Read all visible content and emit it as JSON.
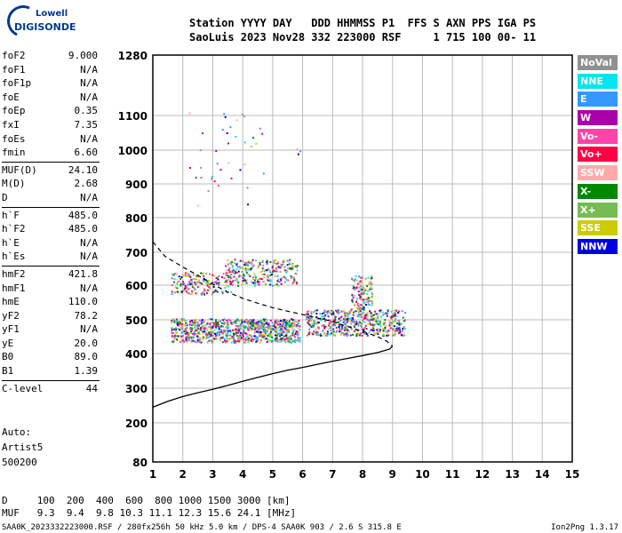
{
  "logo": {
    "line1": "Lowell",
    "line2": "DIGISONDE"
  },
  "header": {
    "labels": "Station YYYY DAY   DDD HHMMSS P1  FFS S AXN PPS IGA PS",
    "values": "SaoLuis 2023 Nov28 332 223000 RSF     1 715 100 00- 11"
  },
  "params": [
    {
      "k": "foF2",
      "v": "9.000"
    },
    {
      "k": "foF1",
      "v": "N/A"
    },
    {
      "k": "foF1p",
      "v": "N/A"
    },
    {
      "k": "foE",
      "v": "N/A"
    },
    {
      "k": "foEp",
      "v": "0.35"
    },
    {
      "k": "fxI",
      "v": "7.35"
    },
    {
      "k": "foEs",
      "v": "N/A"
    },
    {
      "k": "fmin",
      "v": "6.60"
    },
    {
      "k": "MUF(D)",
      "v": "24.10"
    },
    {
      "k": "M(D)",
      "v": "2.68"
    },
    {
      "k": "D",
      "v": "N/A"
    },
    {
      "k": "h`F",
      "v": "485.0"
    },
    {
      "k": "h`F2",
      "v": "485.0"
    },
    {
      "k": "h`E",
      "v": "N/A"
    },
    {
      "k": "h`Es",
      "v": "N/A"
    },
    {
      "k": "hmF2",
      "v": "421.8"
    },
    {
      "k": "hmF1",
      "v": "N/A"
    },
    {
      "k": "hmE",
      "v": "110.0"
    },
    {
      "k": "yF2",
      "v": "78.2"
    },
    {
      "k": "yF1",
      "v": "N/A"
    },
    {
      "k": "yE",
      "v": "20.0"
    },
    {
      "k": "B0",
      "v": "89.0"
    },
    {
      "k": "B1",
      "v": "1.39"
    },
    {
      "k": "C-level",
      "v": "44"
    }
  ],
  "auto": {
    "line1": "Auto:",
    "line2": "Artist5",
    "line3": "500200"
  },
  "legend": [
    {
      "label": "NoVal",
      "color": "#909090"
    },
    {
      "label": "NNE",
      "color": "#00e5ee"
    },
    {
      "label": "E",
      "color": "#3399ff"
    },
    {
      "label": "W",
      "color": "#aa00aa"
    },
    {
      "label": "Vo-",
      "color": "#ff44aa"
    },
    {
      "label": "Vo+",
      "color": "#ff0044"
    },
    {
      "label": "SSW",
      "color": "#ffaaaa"
    },
    {
      "label": "X-",
      "color": "#008800"
    },
    {
      "label": "X+",
      "color": "#77bb55"
    },
    {
      "label": "SSE",
      "color": "#cccc00"
    },
    {
      "label": "NNW",
      "color": "#0000dd"
    }
  ],
  "chart_data": {
    "type": "scatter",
    "xlim": [
      1,
      15
    ],
    "x_ticks": [
      "1",
      "2",
      "3",
      "4",
      "5",
      "6",
      "7",
      "8",
      "9",
      "10",
      "11",
      "12",
      "13",
      "14",
      "15"
    ],
    "y_ticks": [
      {
        "v": 80,
        "label": "80"
      },
      {
        "v": 200,
        "label": "200"
      },
      {
        "v": 300,
        "label": "300"
      },
      {
        "v": 400,
        "label": "400"
      },
      {
        "v": 500,
        "label": "500"
      },
      {
        "v": 600,
        "label": "600"
      },
      {
        "v": 700,
        "label": "700"
      },
      {
        "v": 800,
        "label": "800"
      },
      {
        "v": 900,
        "label": "900"
      },
      {
        "v": 1000,
        "label": "1000"
      },
      {
        "v": 1100,
        "label": "1100"
      },
      {
        "v": 1280,
        "label": "1280"
      }
    ],
    "grid": true,
    "profile_solid": [
      {
        "f": 1.0,
        "h": 245
      },
      {
        "f": 1.5,
        "h": 262
      },
      {
        "f": 2.0,
        "h": 276
      },
      {
        "f": 2.5,
        "h": 287
      },
      {
        "f": 3.0,
        "h": 297
      },
      {
        "f": 3.5,
        "h": 308
      },
      {
        "f": 4.0,
        "h": 320
      },
      {
        "f": 4.5,
        "h": 331
      },
      {
        "f": 5.0,
        "h": 342
      },
      {
        "f": 5.5,
        "h": 352
      },
      {
        "f": 6.0,
        "h": 360
      },
      {
        "f": 6.5,
        "h": 369
      },
      {
        "f": 7.0,
        "h": 378
      },
      {
        "f": 7.5,
        "h": 386
      },
      {
        "f": 8.0,
        "h": 394
      },
      {
        "f": 8.5,
        "h": 403
      },
      {
        "f": 8.9,
        "h": 413
      },
      {
        "f": 9.0,
        "h": 422
      }
    ],
    "profile_dashed": [
      {
        "f": 1.0,
        "h": 730
      },
      {
        "f": 1.4,
        "h": 688
      },
      {
        "f": 2.0,
        "h": 655
      },
      {
        "f": 2.5,
        "h": 630
      },
      {
        "f": 3.0,
        "h": 603
      },
      {
        "f": 3.5,
        "h": 580
      },
      {
        "f": 4.0,
        "h": 562
      },
      {
        "f": 4.5,
        "h": 548
      },
      {
        "f": 5.0,
        "h": 535
      },
      {
        "f": 5.5,
        "h": 525
      },
      {
        "f": 6.0,
        "h": 515
      },
      {
        "f": 6.5,
        "h": 505
      },
      {
        "f": 7.0,
        "h": 495
      },
      {
        "f": 7.5,
        "h": 480
      },
      {
        "f": 8.0,
        "h": 466
      },
      {
        "f": 8.5,
        "h": 450
      },
      {
        "f": 8.8,
        "h": 437
      },
      {
        "f": 9.0,
        "h": 422
      }
    ],
    "echo_clusters": [
      {
        "f0": 1.6,
        "f1": 5.9,
        "h0": 435,
        "h1": 505,
        "n": 900
      },
      {
        "f0": 6.1,
        "f1": 9.4,
        "h0": 455,
        "h1": 530,
        "n": 520
      },
      {
        "f0": 7.6,
        "f1": 8.3,
        "h0": 530,
        "h1": 630,
        "n": 120
      },
      {
        "f0": 1.6,
        "f1": 3.6,
        "h0": 575,
        "h1": 640,
        "n": 170
      },
      {
        "f0": 3.4,
        "f1": 5.8,
        "h0": 600,
        "h1": 680,
        "n": 260
      },
      {
        "f0": 2.2,
        "f1": 4.8,
        "h0": 820,
        "h1": 1110,
        "n": 40
      },
      {
        "f0": 5.7,
        "f1": 6.0,
        "h0": 990,
        "h1": 1010,
        "n": 3
      }
    ]
  },
  "footer": {
    "dist_row": "D     100  200  400  600  800 1000 1500 3000 [km]",
    "muf_row": "MUF   9.3  9.4  9.8 10.3 11.1 12.3 15.6 24.1 [MHz]",
    "file_line": "SAA0K_2023332223000.RSF / 280fx256h 50 kHz 5.0 km / DPS-4 SAA0K 903 / 2.6 S 315.8 E",
    "version": "Ion2Png 1.3.17"
  }
}
